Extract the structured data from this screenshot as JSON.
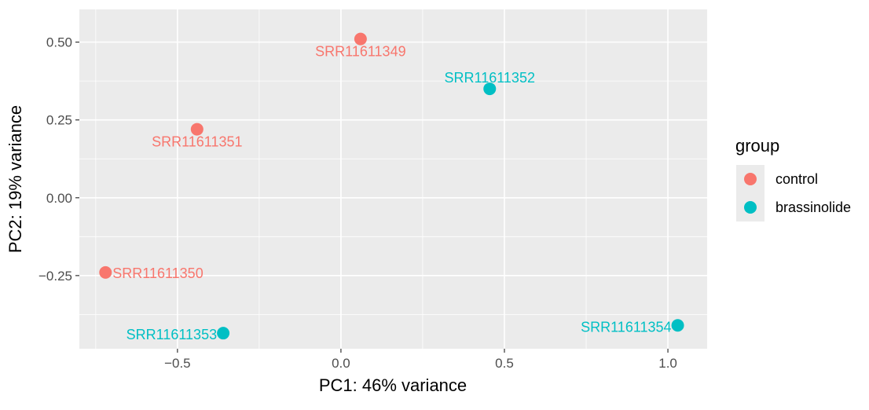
{
  "chart_data": {
    "type": "scatter",
    "title": "",
    "xlabel": "PC1: 46% variance",
    "ylabel": "PC2: 19% variance",
    "xlim": [
      -0.8,
      1.12
    ],
    "ylim": [
      -0.485,
      0.605
    ],
    "x_ticks": [
      {
        "value": -0.5,
        "label": "−0.5"
      },
      {
        "value": 0.0,
        "label": "0.0"
      },
      {
        "value": 0.5,
        "label": "0.5"
      },
      {
        "value": 1.0,
        "label": "1.0"
      }
    ],
    "y_ticks": [
      {
        "value": 0.5,
        "label": "0.50"
      },
      {
        "value": 0.25,
        "label": "0.25"
      },
      {
        "value": 0.0,
        "label": "0.00"
      },
      {
        "value": -0.25,
        "label": "−0.25"
      }
    ],
    "grid": true,
    "legend": {
      "title": "group",
      "placement": "right",
      "entries": [
        {
          "name": "control",
          "color": "#F8766D"
        },
        {
          "name": "brassinolide",
          "color": "#00BFC4"
        }
      ]
    },
    "points": [
      {
        "label": "SRR11611349",
        "group": "control",
        "x": 0.06,
        "y": 0.51,
        "label_pos": "below"
      },
      {
        "label": "SRR11611351",
        "group": "control",
        "x": -0.44,
        "y": 0.22,
        "label_pos": "below"
      },
      {
        "label": "SRR11611350",
        "group": "control",
        "x": -0.72,
        "y": -0.24,
        "label_pos": "right"
      },
      {
        "label": "SRR11611352",
        "group": "brassinolide",
        "x": 0.455,
        "y": 0.35,
        "label_pos": "above"
      },
      {
        "label": "SRR11611353",
        "group": "brassinolide",
        "x": -0.36,
        "y": -0.435,
        "label_pos": "left"
      },
      {
        "label": "SRR11611354",
        "group": "brassinolide",
        "x": 1.03,
        "y": -0.41,
        "label_pos": "left"
      }
    ]
  }
}
